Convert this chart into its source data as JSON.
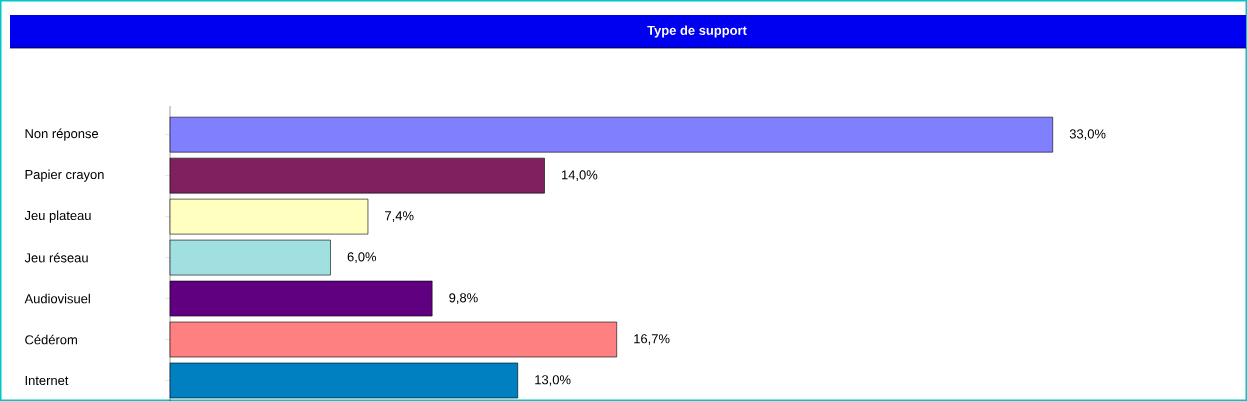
{
  "chart_data": {
    "type": "bar",
    "orientation": "horizontal",
    "title": "Type de support",
    "categories": [
      "Non réponse",
      "Papier crayon",
      "Jeu plateau",
      "Jeu réseau",
      "Audiovisuel",
      "Cédérom",
      "Internet"
    ],
    "values": [
      33.0,
      14.0,
      7.4,
      6.0,
      9.8,
      16.7,
      13.0
    ],
    "colors": [
      "#8080ff",
      "#80205f",
      "#ffffc0",
      "#a0e0e0",
      "#600080",
      "#ff8080",
      "#0080c0"
    ],
    "value_labels": [
      "33,0%",
      "14,0%",
      "7,4%",
      "6,0%",
      "9,8%",
      "16,7%",
      "13,0%"
    ],
    "xlim": [
      0,
      40
    ],
    "tick_labels": "y"
  }
}
